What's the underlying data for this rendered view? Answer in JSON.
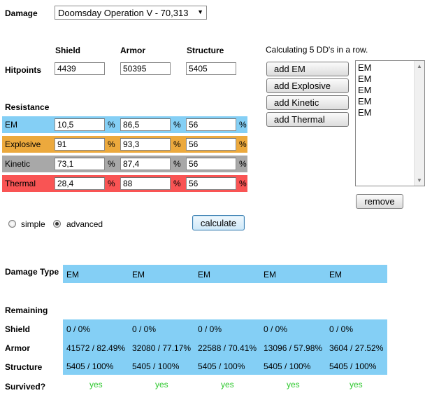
{
  "damage": {
    "label": "Damage",
    "selected": "Doomsday Operation V - 70,313"
  },
  "hitpoints": {
    "label": "Hitpoints",
    "headers": [
      "Shield",
      "Armor",
      "Structure"
    ],
    "values": [
      "4439",
      "50395",
      "5405"
    ]
  },
  "resistance": {
    "label": "Resistance",
    "percent": "%",
    "rows": [
      {
        "name": "EM",
        "values": [
          "10,5",
          "86,5",
          "56"
        ],
        "color": "#84cff5"
      },
      {
        "name": "Explosive",
        "values": [
          "91",
          "93,3",
          "56"
        ],
        "color": "#eca93d"
      },
      {
        "name": "Kinetic",
        "values": [
          "73,1",
          "87,4",
          "56"
        ],
        "color": "#a8a8a8"
      },
      {
        "name": "Thermal",
        "values": [
          "28,4",
          "88",
          "56"
        ],
        "color": "#f95454"
      }
    ]
  },
  "dd": {
    "caption": "Calculating 5 DD's in a row.",
    "buttons": [
      "add EM",
      "add Explosive",
      "add Kinetic",
      "add Thermal"
    ],
    "list": [
      "EM",
      "EM",
      "EM",
      "EM",
      "EM"
    ],
    "remove": "remove"
  },
  "mode": {
    "simple": "simple",
    "advanced": "advanced",
    "selected": "advanced"
  },
  "calculate": "calculate",
  "results": {
    "damage_type_label": "Damage Type",
    "damage_types": [
      "EM",
      "EM",
      "EM",
      "EM",
      "EM"
    ],
    "remaining_label": "Remaining",
    "shield_label": "Shield",
    "shield": [
      "0 / 0%",
      "0 / 0%",
      "0 / 0%",
      "0 / 0%",
      "0 / 0%"
    ],
    "armor_label": "Armor",
    "armor": [
      "41572 / 82.49%",
      "32080 / 77.17%",
      "22588 / 70.41%",
      "13096 / 57.98%",
      "3604 / 27.52%"
    ],
    "structure_label": "Structure",
    "structure": [
      "5405 / 100%",
      "5405 / 100%",
      "5405 / 100%",
      "5405 / 100%",
      "5405 / 100%"
    ],
    "survived_label": "Survived?",
    "survived": [
      "yes",
      "yes",
      "yes",
      "yes",
      "yes"
    ]
  }
}
